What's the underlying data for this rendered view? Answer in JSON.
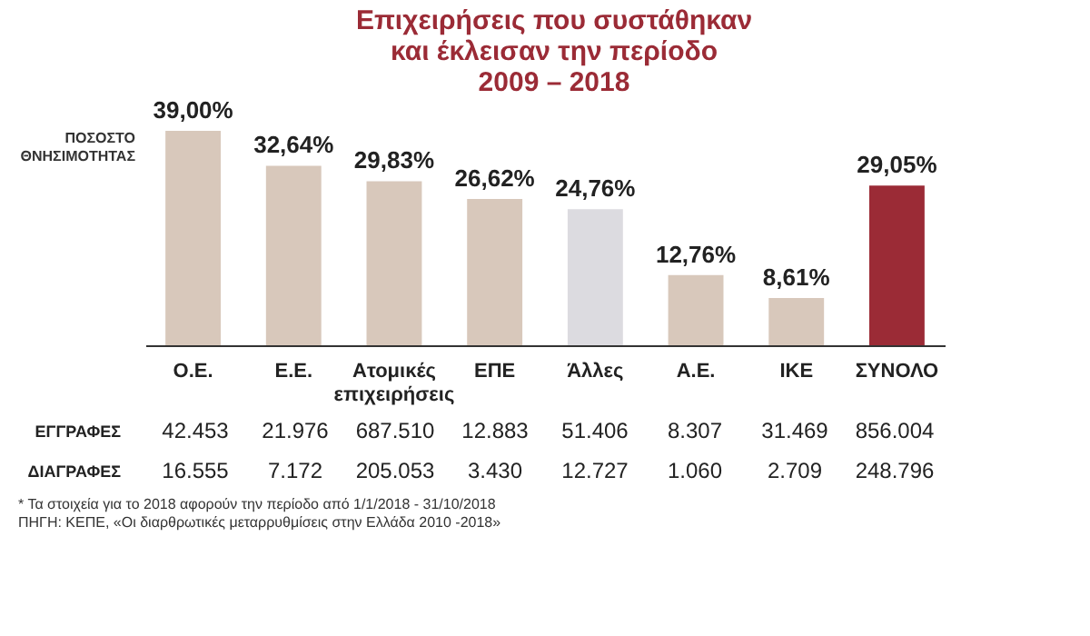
{
  "chart_data": [
    {
      "type": "bar",
      "title": "Επιχειρήσεις που συστάθηκαν\nκαι έκλεισαν την περίοδο\n2009 – 2018",
      "ylabel": "ΠΟΣΟΣΤΟ ΘΝΗΣΙΜΟΤΗΤΑΣ",
      "categories": [
        "Ο.Ε.",
        "Ε.Ε.",
        "Ατομικές επιχειρήσεις",
        "ΕΠΕ",
        "Άλλες",
        "Α.Ε.",
        "ΙΚΕ",
        "ΣΥΝΟΛΟ"
      ],
      "values": [
        39.0,
        32.64,
        29.83,
        26.62,
        24.76,
        12.76,
        8.61,
        29.05
      ],
      "value_labels": [
        "39,00%",
        "32,64%",
        "29,83%",
        "26,62%",
        "24,76%",
        "12,76%",
        "8,61%",
        "29,05%"
      ],
      "colors": [
        "#d8c8bb",
        "#d8c8bb",
        "#d8c8bb",
        "#d8c8bb",
        "#dcdbe0",
        "#d8c8bb",
        "#d8c8bb",
        "#9b2b36"
      ]
    },
    {
      "type": "other",
      "y_categories": [
        "ΕΓΓΡΑΦΕΣ",
        "ΔΙΑΓΡΑΦΕΣ"
      ],
      "cell_labels": [
        [
          "42.453",
          "21.976",
          "687.510",
          "12.883",
          "51.406",
          "8.307",
          "31.469",
          "856.004"
        ],
        [
          "16.555",
          "7.172",
          "205.053",
          "3.430",
          "12.727",
          "1.060",
          "2.709",
          "248.796"
        ]
      ],
      "annotations": [
        "* Τα στοιχεία για το 2018 αφορούν την περίοδο από 1/1/2018 - 31/10/2018",
        "ΠΗΓΗ: ΚΕΠΕ, «Οι διαρθρωτικές μεταρρυθμίσεις στην Ελλάδα 2010 -2018»"
      ]
    }
  ]
}
